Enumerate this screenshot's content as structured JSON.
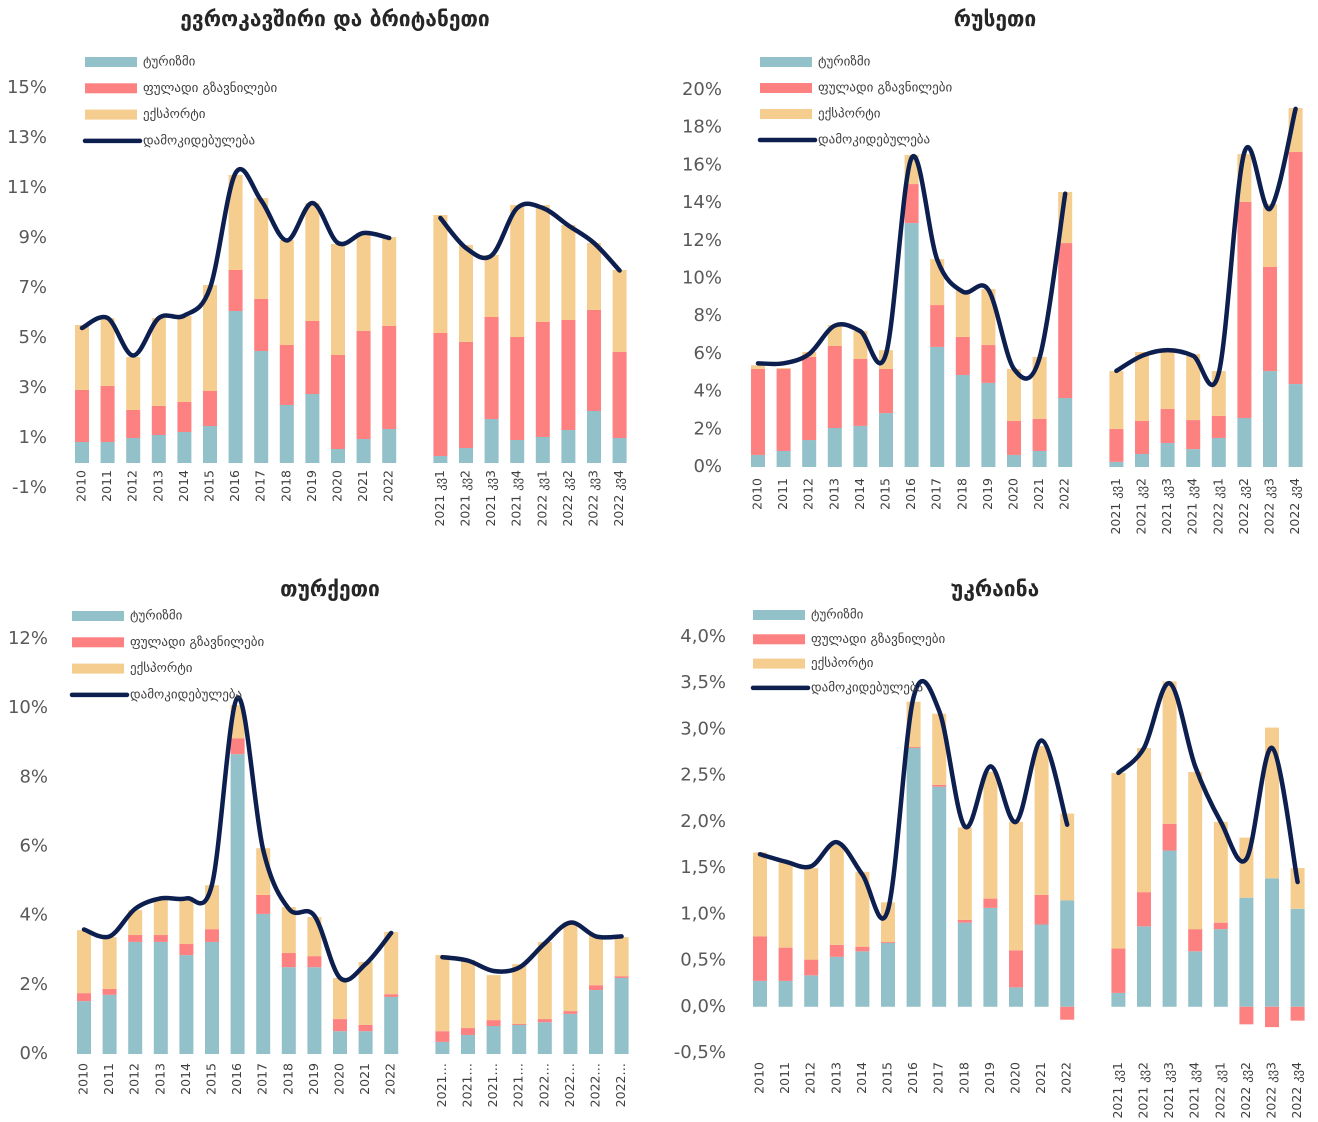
{
  "chart_data": [
    {
      "type": "bar",
      "stacked": true,
      "title": "ევროკავშირი და ბრიტანეთი",
      "categories": [
        "2010",
        "2011",
        "2012",
        "2013",
        "2014",
        "2015",
        "2016",
        "2017",
        "2018",
        "2019",
        "2020",
        "2021",
        "2022",
        null,
        "2021 კვ1",
        "2021 კვ2",
        "2021 კვ3",
        "2021 კვ4",
        "2022 კვ1",
        "2022 კვ2",
        "2022 კვ3",
        "2022 კვ4"
      ],
      "ylim": [
        -1,
        15
      ],
      "yticks": [
        {
          "value": -1,
          "label": "-1%"
        },
        {
          "value": 1,
          "label": "1%"
        },
        {
          "value": 3,
          "label": "3%"
        },
        {
          "value": 5,
          "label": "5%"
        },
        {
          "value": 7,
          "label": "7%"
        },
        {
          "value": 9,
          "label": "9%"
        },
        {
          "value": 11,
          "label": "11%"
        },
        {
          "value": 13,
          "label": "13%"
        },
        {
          "value": 15,
          "label": "15%"
        }
      ],
      "series": [
        {
          "name": "ტურიზმი",
          "kind": "bar",
          "color": "#93c1c9",
          "values": [
            0.84,
            0.84,
            1.0,
            1.12,
            1.24,
            1.48,
            6.08,
            4.48,
            2.32,
            2.76,
            0.56,
            0.96,
            1.36,
            null,
            0.28,
            0.6,
            1.76,
            0.92,
            1.04,
            1.32,
            2.08,
            1.0
          ]
        },
        {
          "name": "ფულადი გზავნილები",
          "kind": "bar",
          "color": "#fd8181",
          "values": [
            2.08,
            2.24,
            1.12,
            1.16,
            1.2,
            1.4,
            1.64,
            2.08,
            2.4,
            2.92,
            3.76,
            4.32,
            4.12,
            null,
            4.92,
            4.24,
            4.08,
            4.12,
            4.6,
            4.4,
            4.04,
            3.44
          ]
        },
        {
          "name": "ექსპორტი",
          "kind": "bar",
          "color": "#f5cd8f",
          "values": [
            2.6,
            2.72,
            2.12,
            3.52,
            3.44,
            4.24,
            3.8,
            4.04,
            4.2,
            4.72,
            4.44,
            3.92,
            3.56,
            null,
            4.72,
            3.88,
            2.48,
            5.28,
            4.68,
            3.8,
            2.68,
            3.28
          ]
        },
        {
          "name": "დამოკიდებულება",
          "kind": "line",
          "color": "#0d1f4f",
          "values": [
            5.4,
            5.8,
            4.3,
            5.8,
            5.9,
            7.0,
            11.6,
            10.5,
            8.9,
            10.4,
            8.8,
            9.2,
            9.0,
            null,
            9.8,
            8.6,
            8.3,
            10.2,
            10.2,
            9.5,
            8.8,
            7.7
          ]
        }
      ]
    },
    {
      "type": "bar",
      "stacked": true,
      "title": "რუსეთი",
      "categories": [
        "2010",
        "2011",
        "2012",
        "2013",
        "2014",
        "2015",
        "2016",
        "2017",
        "2018",
        "2019",
        "2020",
        "2021",
        "2022",
        null,
        "2021 კვ1",
        "2021 კვ2",
        "2021 კვ3",
        "2021 კვ4",
        "2022 კვ1",
        "2022 კვ2",
        "2022 კვ3",
        "2022 კვ4"
      ],
      "ylim": [
        0,
        20
      ],
      "yticks": [
        {
          "value": 0,
          "label": "0%"
        },
        {
          "value": 2,
          "label": "2%"
        },
        {
          "value": 4,
          "label": "4%"
        },
        {
          "value": 6,
          "label": "6%"
        },
        {
          "value": 8,
          "label": "8%"
        },
        {
          "value": 10,
          "label": "10%"
        },
        {
          "value": 12,
          "label": "12%"
        },
        {
          "value": 14,
          "label": "14%"
        },
        {
          "value": 16,
          "label": "16%"
        },
        {
          "value": 18,
          "label": "18%"
        },
        {
          "value": 20,
          "label": "20%"
        }
      ],
      "series": [
        {
          "name": "ტურიზმი",
          "kind": "bar",
          "color": "#93c1c9",
          "values": [
            0.64,
            0.85,
            1.43,
            2.07,
            2.18,
            2.86,
            12.94,
            6.37,
            4.88,
            4.46,
            0.64,
            0.85,
            3.66,
            null,
            0.27,
            0.69,
            1.27,
            0.95,
            1.54,
            2.6,
            5.09,
            4.4
          ]
        },
        {
          "name": "ფულადი გზავნილები",
          "kind": "bar",
          "color": "#fd8181",
          "values": [
            4.56,
            4.35,
            4.41,
            4.35,
            3.55,
            2.34,
            2.07,
            2.22,
            2.02,
            2.01,
            1.8,
            1.7,
            8.22,
            null,
            1.75,
            1.75,
            1.81,
            1.54,
            1.17,
            11.46,
            5.52,
            12.31
          ]
        },
        {
          "name": "ექსპორტი",
          "kind": "bar",
          "color": "#f5cd8f",
          "values": [
            0.2,
            0.05,
            0.26,
            1.11,
            1.48,
            1.0,
            1.54,
            2.44,
            2.49,
            2.97,
            2.76,
            3.29,
            2.71,
            null,
            3.07,
            3.66,
            3.12,
            3.5,
            2.38,
            2.54,
            3.34,
            2.33
          ]
        },
        {
          "name": "დამოკიდებულება",
          "kind": "line",
          "color": "#0d1f4f",
          "values": [
            5.5,
            5.5,
            6.0,
            7.5,
            7.2,
            6.0,
            16.4,
            11.0,
            9.3,
            9.4,
            5.2,
            5.8,
            14.5,
            null,
            5.1,
            5.9,
            6.2,
            5.9,
            5.0,
            16.7,
            13.7,
            19.0
          ]
        }
      ]
    },
    {
      "type": "bar",
      "stacked": true,
      "title": "თურქეთი",
      "categories": [
        "2010",
        "2011",
        "2012",
        "2013",
        "2014",
        "2015",
        "2016",
        "2017",
        "2018",
        "2019",
        "2020",
        "2021",
        "2022",
        null,
        "2021…",
        "2021…",
        "2021…",
        "2021…",
        "2022…",
        "2022…",
        "2022…",
        "2022…"
      ],
      "ylim": [
        0,
        12
      ],
      "yticks": [
        {
          "value": 0,
          "label": "0%"
        },
        {
          "value": 2,
          "label": "2%"
        },
        {
          "value": 4,
          "label": "4%"
        },
        {
          "value": 6,
          "label": "6%"
        },
        {
          "value": 8,
          "label": "8%"
        },
        {
          "value": 10,
          "label": "10%"
        },
        {
          "value": 12,
          "label": "12%"
        }
      ],
      "series": [
        {
          "name": "ტურიზმი",
          "kind": "bar",
          "color": "#93c1c9",
          "values": [
            1.53,
            1.71,
            3.24,
            3.24,
            2.86,
            3.24,
            8.67,
            4.05,
            2.51,
            2.51,
            0.66,
            0.66,
            1.65,
            null,
            0.35,
            0.55,
            0.81,
            0.84,
            0.92,
            1.16,
            1.85,
            2.2
          ]
        },
        {
          "name": "ფულადი გზავნილები",
          "kind": "bar",
          "color": "#fd8181",
          "values": [
            0.23,
            0.17,
            0.2,
            0.2,
            0.32,
            0.37,
            0.46,
            0.55,
            0.41,
            0.32,
            0.35,
            0.18,
            0.08,
            null,
            0.31,
            0.2,
            0.17,
            0.03,
            0.09,
            0.08,
            0.14,
            0.05
          ]
        },
        {
          "name": "ექსპორტი",
          "kind": "bar",
          "color": "#f5cd8f",
          "values": [
            1.82,
            1.5,
            0.72,
            1.07,
            1.36,
            1.27,
            0.96,
            1.35,
            1.33,
            1.13,
            1.19,
            1.82,
            1.8,
            null,
            2.2,
            1.97,
            1.3,
            1.73,
            2.23,
            2.58,
            1.45,
            1.13
          ]
        },
        {
          "name": "დამოკიდებულება",
          "kind": "line",
          "color": "#0d1f4f",
          "values": [
            3.6,
            3.4,
            4.2,
            4.5,
            4.5,
            4.9,
            10.3,
            5.9,
            4.2,
            4.0,
            2.2,
            2.6,
            3.5,
            null,
            2.8,
            2.7,
            2.4,
            2.5,
            3.2,
            3.8,
            3.4,
            3.4
          ]
        }
      ]
    },
    {
      "type": "bar",
      "stacked": true,
      "title": "უკრაინა",
      "categories": [
        "2010",
        "2011",
        "2012",
        "2013",
        "2014",
        "2015",
        "2016",
        "2017",
        "2018",
        "2019",
        "2020",
        "2021",
        "2022",
        null,
        "2021 კვ1",
        "2021 კვ2",
        "2021 კვ3",
        "2021 კვ4",
        "2022 კვ1",
        "2022 კვ2",
        "2022 კვ3",
        "2022 კვ4"
      ],
      "ylim": [
        -0.5,
        4.0
      ],
      "yticks": [
        {
          "value": -0.5,
          "label": "-0,5%"
        },
        {
          "value": 0,
          "label": "0,0%"
        },
        {
          "value": 0.5,
          "label": "0,5%"
        },
        {
          "value": 1.0,
          "label": "1,0%"
        },
        {
          "value": 1.5,
          "label": "1,5%"
        },
        {
          "value": 2.0,
          "label": "2,0%"
        },
        {
          "value": 2.5,
          "label": "2,5%"
        },
        {
          "value": 3.0,
          "label": "3,0%"
        },
        {
          "value": 3.5,
          "label": "3,5%"
        },
        {
          "value": 4.0,
          "label": "4,0%"
        }
      ],
      "series": [
        {
          "name": "ტურიზმი",
          "kind": "bar",
          "color": "#93c1c9",
          "values": [
            0.28,
            0.28,
            0.34,
            0.54,
            0.6,
            0.69,
            2.8,
            2.38,
            0.91,
            1.07,
            0.21,
            0.89,
            1.15,
            null,
            0.15,
            0.87,
            1.69,
            0.6,
            0.84,
            1.18,
            1.39,
            1.06
          ]
        },
        {
          "name": "ფულადი გზავნილები",
          "kind": "bar",
          "color": "#fd8181",
          "values": [
            0.48,
            0.36,
            0.17,
            0.13,
            0.05,
            0.01,
            0.01,
            0.02,
            0.03,
            0.1,
            0.4,
            0.32,
            -0.14,
            null,
            0.48,
            0.37,
            0.29,
            0.24,
            0.07,
            -0.19,
            -0.22,
            -0.15
          ]
        },
        {
          "name": "ექსპორტი",
          "kind": "bar",
          "color": "#f5cd8f",
          "values": [
            0.91,
            0.93,
            0.99,
            1.08,
            0.81,
            0.43,
            0.49,
            0.77,
            1.0,
            1.37,
            1.39,
            1.61,
            0.94,
            null,
            1.9,
            1.56,
            1.54,
            1.7,
            1.09,
            0.65,
            1.63,
            0.44
          ]
        },
        {
          "name": "დამოკიდებულება",
          "kind": "line",
          "color": "#0d1f4f",
          "values": [
            1.65,
            1.57,
            1.52,
            1.78,
            1.43,
            1.05,
            3.35,
            3.2,
            1.95,
            2.6,
            2.0,
            2.88,
            1.97,
            null,
            2.53,
            2.8,
            3.5,
            2.6,
            2.0,
            1.6,
            2.8,
            1.35
          ]
        }
      ]
    }
  ]
}
